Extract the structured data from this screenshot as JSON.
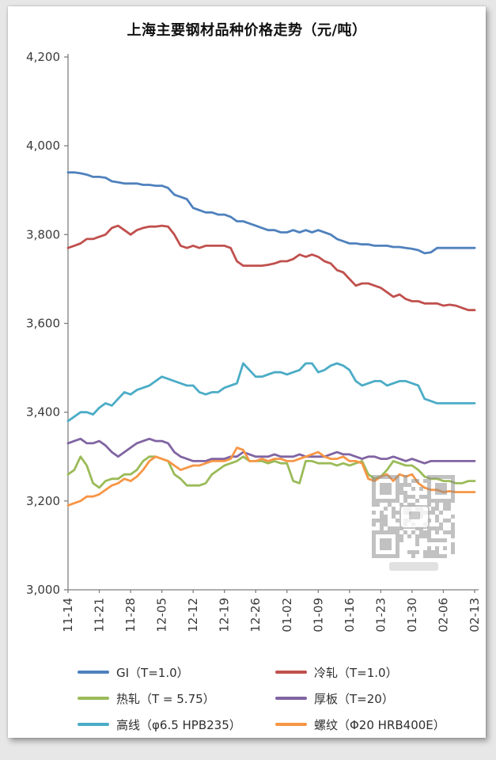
{
  "title": "上海主要钢材品种价格走势（元/吨）",
  "watermark": {
    "type": "qr-code"
  },
  "chart_data": {
    "type": "line",
    "title": "上海主要钢材品种价格走势（元/吨）",
    "xlabel": "",
    "ylabel": "",
    "ylim": [
      3000,
      4200
    ],
    "grid": false,
    "legend_position": "bottom",
    "y_tick_values": [
      3000,
      3200,
      3400,
      3600,
      3800,
      4000,
      4200
    ],
    "y_tick_labels": [
      "3,000",
      "3,200",
      "3,400",
      "3,600",
      "3,800",
      "4,000",
      "4,200"
    ],
    "x_tick_labels": [
      "11-14",
      "11-21",
      "11-28",
      "12-05",
      "12-12",
      "12-19",
      "12-26",
      "01-02",
      "01-09",
      "01-16",
      "01-23",
      "01-30",
      "02-06",
      "02-13"
    ],
    "x_tick_every": 5,
    "series": [
      {
        "name": "GI（T=1.0）",
        "color": "#4F81BD",
        "values": [
          3940,
          3940,
          3938,
          3935,
          3930,
          3930,
          3928,
          3920,
          3918,
          3915,
          3915,
          3915,
          3912,
          3912,
          3910,
          3910,
          3905,
          3890,
          3885,
          3880,
          3860,
          3855,
          3850,
          3850,
          3845,
          3845,
          3840,
          3830,
          3830,
          3825,
          3820,
          3815,
          3810,
          3810,
          3805,
          3805,
          3810,
          3805,
          3810,
          3805,
          3810,
          3805,
          3800,
          3790,
          3785,
          3780,
          3780,
          3778,
          3778,
          3775,
          3775,
          3775,
          3772,
          3772,
          3770,
          3768,
          3765,
          3758,
          3760,
          3770,
          3770,
          3770,
          3770,
          3770,
          3770,
          3770
        ]
      },
      {
        "name": "冷轧（T=1.0）",
        "color": "#C0504D",
        "values": [
          3770,
          3775,
          3780,
          3790,
          3790,
          3795,
          3800,
          3815,
          3820,
          3810,
          3800,
          3810,
          3815,
          3818,
          3818,
          3820,
          3818,
          3800,
          3775,
          3770,
          3775,
          3770,
          3775,
          3775,
          3775,
          3775,
          3770,
          3740,
          3730,
          3730,
          3730,
          3730,
          3732,
          3735,
          3740,
          3740,
          3745,
          3755,
          3750,
          3755,
          3750,
          3740,
          3735,
          3720,
          3715,
          3700,
          3685,
          3690,
          3690,
          3685,
          3680,
          3670,
          3660,
          3665,
          3655,
          3650,
          3650,
          3645,
          3645,
          3645,
          3640,
          3642,
          3640,
          3635,
          3630,
          3630
        ]
      },
      {
        "name": "热轧（T = 5.75）",
        "color": "#9BBB59",
        "values": [
          3260,
          3270,
          3300,
          3280,
          3240,
          3230,
          3245,
          3250,
          3250,
          3260,
          3260,
          3270,
          3290,
          3300,
          3300,
          3295,
          3290,
          3260,
          3250,
          3235,
          3235,
          3235,
          3240,
          3260,
          3270,
          3280,
          3285,
          3290,
          3300,
          3290,
          3290,
          3290,
          3285,
          3290,
          3285,
          3285,
          3245,
          3240,
          3290,
          3290,
          3285,
          3285,
          3285,
          3280,
          3285,
          3280,
          3285,
          3290,
          3260,
          3250,
          3255,
          3270,
          3290,
          3285,
          3280,
          3280,
          3270,
          3255,
          3250,
          3250,
          3245,
          3245,
          3240,
          3240,
          3245,
          3245
        ]
      },
      {
        "name": "厚板（T=20）",
        "color": "#8064A2",
        "values": [
          3330,
          3335,
          3340,
          3330,
          3330,
          3335,
          3325,
          3310,
          3300,
          3310,
          3320,
          3330,
          3335,
          3340,
          3335,
          3335,
          3330,
          3310,
          3300,
          3295,
          3290,
          3290,
          3290,
          3295,
          3295,
          3295,
          3300,
          3300,
          3310,
          3305,
          3300,
          3300,
          3300,
          3305,
          3300,
          3300,
          3300,
          3305,
          3300,
          3300,
          3300,
          3300,
          3305,
          3310,
          3305,
          3305,
          3300,
          3295,
          3300,
          3300,
          3295,
          3295,
          3300,
          3295,
          3290,
          3295,
          3290,
          3285,
          3290,
          3290,
          3290,
          3290,
          3290,
          3290,
          3290,
          3290
        ]
      },
      {
        "name": "高线（φ6.5 HPB235）",
        "color": "#4BACC6",
        "values": [
          3380,
          3390,
          3400,
          3400,
          3395,
          3410,
          3420,
          3415,
          3430,
          3445,
          3440,
          3450,
          3455,
          3460,
          3470,
          3480,
          3475,
          3470,
          3465,
          3460,
          3460,
          3445,
          3440,
          3445,
          3445,
          3455,
          3460,
          3465,
          3510,
          3495,
          3480,
          3480,
          3485,
          3490,
          3490,
          3485,
          3490,
          3495,
          3510,
          3510,
          3490,
          3495,
          3505,
          3510,
          3505,
          3495,
          3470,
          3460,
          3465,
          3470,
          3470,
          3460,
          3465,
          3470,
          3470,
          3465,
          3460,
          3430,
          3425,
          3420,
          3420,
          3420,
          3420,
          3420,
          3420,
          3420
        ]
      },
      {
        "name": "螺纹（Φ20 HRB400E）",
        "color": "#F79646",
        "values": [
          3190,
          3195,
          3200,
          3210,
          3210,
          3215,
          3225,
          3235,
          3240,
          3250,
          3245,
          3255,
          3270,
          3290,
          3300,
          3295,
          3290,
          3280,
          3270,
          3275,
          3280,
          3280,
          3285,
          3290,
          3290,
          3290,
          3295,
          3320,
          3315,
          3290,
          3290,
          3295,
          3290,
          3295,
          3295,
          3290,
          3290,
          3295,
          3300,
          3305,
          3310,
          3300,
          3295,
          3295,
          3300,
          3290,
          3290,
          3285,
          3250,
          3245,
          3255,
          3260,
          3245,
          3260,
          3255,
          3260,
          3240,
          3230,
          3225,
          3225,
          3220,
          3222,
          3220,
          3220,
          3220,
          3220
        ]
      }
    ]
  }
}
